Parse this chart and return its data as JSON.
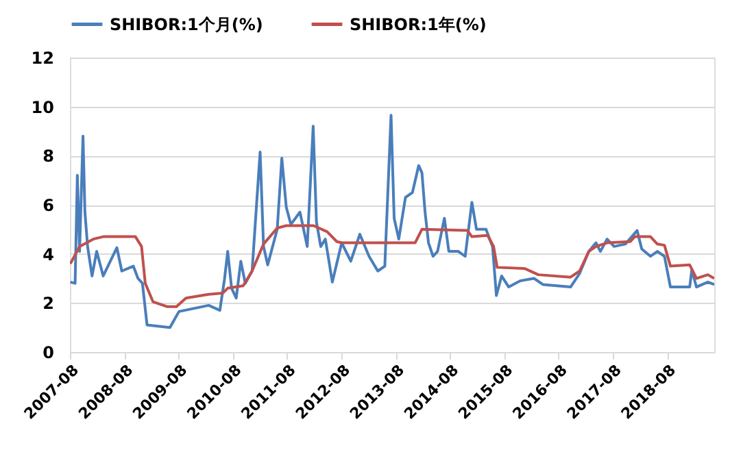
{
  "chart_data": {
    "type": "line",
    "legend": "top",
    "grid": "y",
    "line_style": "solid",
    "marker": "none",
    "xlim": [
      "2007-08-01",
      "2019-06-15"
    ],
    "xticks": [
      "2007-08",
      "2008-08",
      "2009-08",
      "2010-08",
      "2011-08",
      "2012-08",
      "2013-08",
      "2014-08",
      "2015-08",
      "2016-08",
      "2017-08",
      "2018-08"
    ],
    "ylim": [
      0,
      12
    ],
    "yticks": [
      0,
      2,
      4,
      6,
      8,
      10,
      12
    ],
    "series": [
      {
        "name": "SHIBOR:1个月(%)",
        "color": "#4a7ebb",
        "x": [
          "2007-08-04",
          "2007-09-05",
          "2007-09-20",
          "2007-10-05",
          "2007-10-28",
          "2007-11-10",
          "2007-11-28",
          "2007-12-28",
          "2008-01-28",
          "2008-03-12",
          "2008-06-12",
          "2008-07-15",
          "2008-10-01",
          "2008-11-01",
          "2008-12-01",
          "2009-01-01",
          "2009-06-04",
          "2009-08-04",
          "2010-02-20",
          "2010-05-06",
          "2010-06-06",
          "2010-06-28",
          "2010-07-24",
          "2010-08-24",
          "2010-09-24",
          "2010-10-24",
          "2010-12-09",
          "2011-01-09",
          "2011-02-01",
          "2011-02-24",
          "2011-03-24",
          "2011-05-27",
          "2011-06-27",
          "2011-07-27",
          "2011-08-27",
          "2011-10-27",
          "2011-12-15",
          "2012-01-24",
          "2012-02-15",
          "2012-03-15",
          "2012-04-15",
          "2012-06-01",
          "2012-08-03",
          "2012-10-03",
          "2012-12-03",
          "2013-02-03",
          "2013-04-03",
          "2013-05-20",
          "2013-07-01",
          "2013-07-22",
          "2013-08-22",
          "2013-10-06",
          "2013-11-22",
          "2014-01-03",
          "2014-01-25",
          "2014-02-15",
          "2014-03-10",
          "2014-04-10",
          "2014-05-10",
          "2014-06-25",
          "2014-07-25",
          "2014-09-27",
          "2014-11-12",
          "2014-12-27",
          "2015-01-27",
          "2015-04-01",
          "2015-05-15",
          "2015-06-10",
          "2015-07-15",
          "2015-09-01",
          "2015-11-18",
          "2016-02-18",
          "2016-04-18",
          "2016-10-21",
          "2016-12-21",
          "2017-02-21",
          "2017-04-10",
          "2017-05-10",
          "2017-06-24",
          "2017-08-10",
          "2017-10-25",
          "2018-01-12",
          "2018-02-12",
          "2018-04-12",
          "2018-05-28",
          "2018-07-15",
          "2018-08-24",
          "2018-11-01",
          "2019-01-01",
          "2019-01-15",
          "2019-02-15",
          "2019-05-03",
          "2019-06-15"
        ],
        "values": [
          2.85,
          2.8,
          7.2,
          4.1,
          8.8,
          5.7,
          4.3,
          3.1,
          4.1,
          3.1,
          4.25,
          3.3,
          3.5,
          3.0,
          2.8,
          1.1,
          1.0,
          1.65,
          1.9,
          1.7,
          2.95,
          4.1,
          2.6,
          2.2,
          3.7,
          2.8,
          3.3,
          6.1,
          8.15,
          4.3,
          3.55,
          5.0,
          7.9,
          5.9,
          5.2,
          5.7,
          4.3,
          9.2,
          5.3,
          4.3,
          4.6,
          2.85,
          4.45,
          3.7,
          4.8,
          3.9,
          3.3,
          3.5,
          9.65,
          5.45,
          4.6,
          6.3,
          6.5,
          7.6,
          7.3,
          5.7,
          4.45,
          3.9,
          4.1,
          5.45,
          4.1,
          4.1,
          3.9,
          6.1,
          5.0,
          5.0,
          4.3,
          2.3,
          3.1,
          2.65,
          2.9,
          3.0,
          2.75,
          2.65,
          3.2,
          4.1,
          4.45,
          4.1,
          4.6,
          4.3,
          4.4,
          4.95,
          4.2,
          3.9,
          4.1,
          3.9,
          2.65,
          2.65,
          2.65,
          3.35,
          2.65,
          2.85,
          2.75
        ]
      },
      {
        "name": "SHIBOR:1年(%)",
        "color": "#c0504d",
        "x": [
          "2007-08-04",
          "2007-10-05",
          "2008-01-05",
          "2008-03-12",
          "2008-10-15",
          "2008-11-25",
          "2008-12-20",
          "2009-02-10",
          "2009-05-15",
          "2009-07-18",
          "2009-09-20",
          "2010-02-20",
          "2010-05-25",
          "2010-06-28",
          "2010-10-10",
          "2010-12-09",
          "2011-02-24",
          "2011-05-27",
          "2011-07-27",
          "2012-01-27",
          "2012-04-27",
          "2012-07-01",
          "2012-08-03",
          "2013-06-10",
          "2013-12-10",
          "2014-01-25",
          "2014-11-28",
          "2014-12-27",
          "2015-04-12",
          "2015-05-22",
          "2015-06-15",
          "2015-12-18",
          "2016-03-18",
          "2016-10-21",
          "2016-12-21",
          "2017-02-21",
          "2017-04-10",
          "2017-06-24",
          "2017-11-27",
          "2017-12-27",
          "2018-04-12",
          "2018-05-28",
          "2018-07-15",
          "2018-08-24",
          "2019-01-01",
          "2019-02-15",
          "2019-05-03",
          "2019-06-15"
        ],
        "values": [
          3.6,
          4.3,
          4.6,
          4.7,
          4.7,
          4.3,
          2.8,
          2.05,
          1.85,
          1.85,
          2.2,
          2.35,
          2.4,
          2.6,
          2.7,
          3.3,
          4.4,
          5.05,
          5.15,
          5.15,
          4.9,
          4.5,
          4.45,
          4.45,
          4.45,
          5.0,
          4.95,
          4.7,
          4.75,
          4.3,
          3.45,
          3.4,
          3.15,
          3.05,
          3.3,
          4.1,
          4.3,
          4.45,
          4.5,
          4.7,
          4.7,
          4.4,
          4.35,
          3.5,
          3.55,
          3.0,
          3.15,
          3.0
        ]
      }
    ]
  }
}
